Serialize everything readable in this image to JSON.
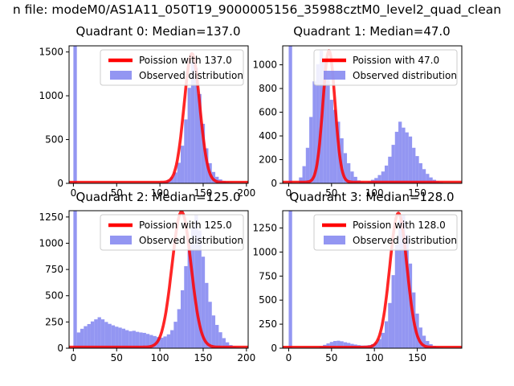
{
  "figure": {
    "suptitle": "n file: modeM0/AS1A11_050T19_9000005156_35988cztM0_level2_quad_clean"
  },
  "colors": {
    "hist": "#8084f0",
    "curve": "#ff0000",
    "legend_border": "#cccccc",
    "background": "#ffffff",
    "text": "#000000"
  },
  "chart_data": {
    "type": "bar",
    "subtype": "histogram-grid-2x2-with-fit-curves",
    "quadrants": [
      {
        "name": "quadrant-0",
        "title": "Quadrant 0: Median=137.0",
        "median": 137.0,
        "legend": {
          "curve_label": "Poission with 137.0",
          "hist_label": "Observed distribution",
          "position": "upper right"
        },
        "x_ticks": [
          0,
          50,
          100,
          150,
          200
        ],
        "y_ticks": [
          0,
          500,
          1000,
          1500
        ],
        "xlim": [
          -5,
          202
        ],
        "ylim": [
          0,
          1570
        ],
        "bin_width": 4,
        "bars": [
          [
            0,
            1570
          ],
          [
            88,
            4
          ],
          [
            92,
            6
          ],
          [
            96,
            9
          ],
          [
            100,
            13
          ],
          [
            104,
            22
          ],
          [
            108,
            40
          ],
          [
            112,
            70
          ],
          [
            116,
            125
          ],
          [
            120,
            235
          ],
          [
            124,
            430
          ],
          [
            128,
            730
          ],
          [
            132,
            1090
          ],
          [
            136,
            1385
          ],
          [
            140,
            1320
          ],
          [
            144,
            1020
          ],
          [
            148,
            680
          ],
          [
            152,
            400
          ],
          [
            156,
            230
          ],
          [
            160,
            130
          ],
          [
            164,
            75
          ],
          [
            168,
            45
          ],
          [
            172,
            28
          ],
          [
            176,
            15
          ],
          [
            180,
            8
          ]
        ],
        "curve": {
          "type": "poisson-fit",
          "center": 137,
          "sigma": 9,
          "peak": 1470,
          "base": 12
        }
      },
      {
        "name": "quadrant-1",
        "title": "Quadrant 1: Median=47.0",
        "median": 47.0,
        "legend": {
          "curve_label": "Poission with 47.0",
          "hist_label": "Observed distribution",
          "position": "upper right"
        },
        "x_ticks": [
          0,
          50,
          100,
          150
        ],
        "y_ticks": [
          0,
          200,
          400,
          600,
          800,
          1000
        ],
        "xlim": [
          -7,
          202
        ],
        "ylim": [
          0,
          1160
        ],
        "bin_width": 4,
        "bars": [
          [
            0,
            1160
          ],
          [
            12,
            50
          ],
          [
            16,
            145
          ],
          [
            20,
            300
          ],
          [
            24,
            560
          ],
          [
            28,
            860
          ],
          [
            32,
            1005
          ],
          [
            36,
            1120
          ],
          [
            40,
            1050
          ],
          [
            44,
            880
          ],
          [
            48,
            705
          ],
          [
            52,
            620
          ],
          [
            56,
            520
          ],
          [
            60,
            380
          ],
          [
            64,
            255
          ],
          [
            68,
            170
          ],
          [
            72,
            100
          ],
          [
            76,
            55
          ],
          [
            80,
            25
          ],
          [
            84,
            12
          ],
          [
            88,
            8
          ],
          [
            92,
            15
          ],
          [
            96,
            30
          ],
          [
            100,
            45
          ],
          [
            104,
            70
          ],
          [
            108,
            100
          ],
          [
            112,
            150
          ],
          [
            116,
            225
          ],
          [
            120,
            325
          ],
          [
            124,
            435
          ],
          [
            128,
            520
          ],
          [
            132,
            470
          ],
          [
            136,
            430
          ],
          [
            140,
            395
          ],
          [
            144,
            300
          ],
          [
            148,
            230
          ],
          [
            152,
            170
          ],
          [
            156,
            120
          ],
          [
            160,
            80
          ],
          [
            164,
            50
          ],
          [
            168,
            30
          ],
          [
            172,
            18
          ],
          [
            176,
            10
          ]
        ],
        "curve": {
          "type": "poisson-fit",
          "center": 47,
          "sigma": 7,
          "peak": 1110,
          "base": 10
        }
      },
      {
        "name": "quadrant-2",
        "title": "Quadrant 2: Median=125.0",
        "median": 125.0,
        "legend": {
          "curve_label": "Poission with 125.0",
          "hist_label": "Observed distribution",
          "position": "upper right"
        },
        "x_ticks": [
          0,
          50,
          100,
          150,
          200
        ],
        "y_ticks": [
          0,
          250,
          500,
          750,
          1000,
          1250
        ],
        "xlim": [
          -5,
          202
        ],
        "ylim": [
          0,
          1310
        ],
        "bin_width": 4,
        "bars": [
          [
            0,
            1310
          ],
          [
            4,
            150
          ],
          [
            8,
            185
          ],
          [
            12,
            210
          ],
          [
            16,
            230
          ],
          [
            20,
            255
          ],
          [
            24,
            275
          ],
          [
            28,
            295
          ],
          [
            32,
            275
          ],
          [
            36,
            250
          ],
          [
            40,
            232
          ],
          [
            44,
            218
          ],
          [
            48,
            205
          ],
          [
            52,
            196
          ],
          [
            56,
            186
          ],
          [
            60,
            172
          ],
          [
            64,
            162
          ],
          [
            68,
            166
          ],
          [
            72,
            156
          ],
          [
            76,
            150
          ],
          [
            80,
            146
          ],
          [
            84,
            136
          ],
          [
            88,
            126
          ],
          [
            92,
            116
          ],
          [
            96,
            106
          ],
          [
            100,
            100
          ],
          [
            104,
            112
          ],
          [
            108,
            132
          ],
          [
            112,
            172
          ],
          [
            116,
            252
          ],
          [
            120,
            372
          ],
          [
            124,
            552
          ],
          [
            128,
            782
          ],
          [
            132,
            1002
          ],
          [
            136,
            1152
          ],
          [
            140,
            1272
          ],
          [
            144,
            1122
          ],
          [
            148,
            872
          ],
          [
            152,
            622
          ],
          [
            156,
            442
          ],
          [
            160,
            312
          ],
          [
            164,
            222
          ],
          [
            168,
            152
          ],
          [
            172,
            96
          ],
          [
            176,
            56
          ],
          [
            180,
            30
          ],
          [
            184,
            15
          ],
          [
            188,
            8
          ]
        ],
        "curve": {
          "type": "poisson-fit",
          "center": 125,
          "sigma": 11,
          "peak": 1290,
          "base": 10
        }
      },
      {
        "name": "quadrant-3",
        "title": "Quadrant 3: Median=128.0",
        "median": 128.0,
        "legend": {
          "curve_label": "Poission with 128.0",
          "hist_label": "Observed distribution",
          "position": "upper right"
        },
        "x_ticks": [
          0,
          50,
          100,
          150
        ],
        "y_ticks": [
          0,
          250,
          500,
          750,
          1000,
          1250
        ],
        "xlim": [
          -7,
          202
        ],
        "ylim": [
          0,
          1430
        ],
        "bin_width": 4,
        "bars": [
          [
            0,
            1430
          ],
          [
            36,
            20
          ],
          [
            40,
            35
          ],
          [
            44,
            50
          ],
          [
            48,
            65
          ],
          [
            52,
            75
          ],
          [
            56,
            78
          ],
          [
            60,
            72
          ],
          [
            64,
            62
          ],
          [
            68,
            55
          ],
          [
            72,
            45
          ],
          [
            76,
            38
          ],
          [
            80,
            32
          ],
          [
            84,
            28
          ],
          [
            88,
            28
          ],
          [
            92,
            32
          ],
          [
            96,
            42
          ],
          [
            100,
            60
          ],
          [
            104,
            95
          ],
          [
            108,
            160
          ],
          [
            112,
            280
          ],
          [
            116,
            470
          ],
          [
            120,
            760
          ],
          [
            124,
            1080
          ],
          [
            128,
            1330
          ],
          [
            132,
            1390
          ],
          [
            136,
            1180
          ],
          [
            140,
            880
          ],
          [
            144,
            580
          ],
          [
            148,
            360
          ],
          [
            152,
            215
          ],
          [
            156,
            130
          ],
          [
            160,
            75
          ],
          [
            164,
            42
          ],
          [
            168,
            24
          ],
          [
            172,
            13
          ],
          [
            176,
            7
          ]
        ],
        "curve": {
          "type": "poisson-fit",
          "center": 128,
          "sigma": 10,
          "peak": 1395,
          "base": 10
        }
      }
    ]
  }
}
